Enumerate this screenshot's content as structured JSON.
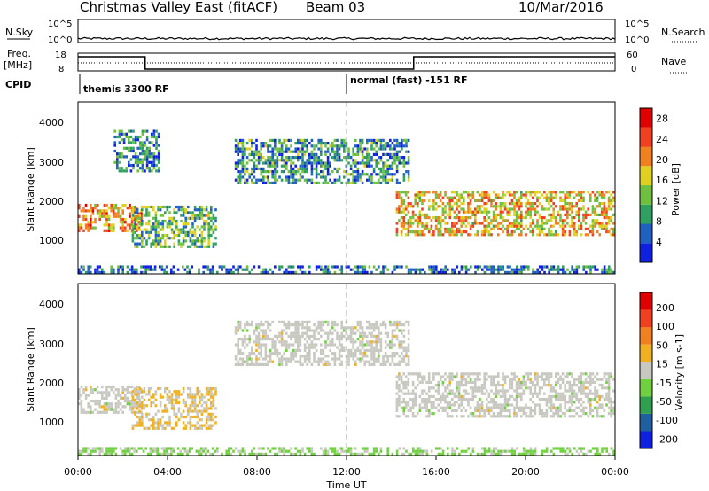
{
  "header": {
    "title": "Christmas Valley East (fitACF)",
    "beam": "Beam 03",
    "date": "10/Mar/2016"
  },
  "top_strip": {
    "nsky_label": "N.Sky",
    "nsky_ticks": [
      "10^5",
      "10^0"
    ],
    "nsearch_label": "N.Search",
    "nsearch_ticks": [
      "10^5",
      "10^0"
    ],
    "freq_label_1": "Freq.",
    "freq_label_2": "[MHz]",
    "freq_ticks": [
      "18",
      "8"
    ],
    "nave_label": "Nave",
    "nave_ticks": [
      "60",
      "0"
    ],
    "cpid_label": "CPID",
    "cpid_segments": [
      {
        "start": 0,
        "end": 12,
        "label": "themis 3300 RF"
      },
      {
        "start": 12,
        "end": 24,
        "label": "normal (fast) -151 RF"
      }
    ],
    "freq_series": [
      {
        "start": 0,
        "end": 3.0,
        "mhz": 16
      },
      {
        "start": 3.0,
        "end": 15.0,
        "mhz": 9
      },
      {
        "start": 15.0,
        "end": 24,
        "mhz": 16
      }
    ]
  },
  "x_axis": {
    "label": "Time UT",
    "ticks": [
      "00:00",
      "04:00",
      "08:00",
      "12:00",
      "16:00",
      "20:00",
      "00:00"
    ],
    "range": [
      0,
      24
    ]
  },
  "chart_data": [
    {
      "type": "heatmap",
      "title": "",
      "xlabel": "Time UT",
      "ylabel": "Slant Range [km]",
      "xlim": [
        0,
        24
      ],
      "ylim": [
        180,
        4500
      ],
      "y_ticks": [
        "1000",
        "2000",
        "3000",
        "4000"
      ],
      "colorbar": {
        "label": "Power [dB]",
        "ticks": [
          "4",
          "8",
          "12",
          "16",
          "20",
          "24",
          "28"
        ],
        "range": [
          0,
          30
        ]
      },
      "regions": [
        {
          "t0": 0.0,
          "t1": 2.8,
          "r0": 1300,
          "r1": 2000,
          "value": 20
        },
        {
          "t0": 2.4,
          "t1": 6.2,
          "r0": 900,
          "r1": 1900,
          "value": 12
        },
        {
          "t0": 1.6,
          "t1": 3.6,
          "r0": 2800,
          "r1": 3800,
          "value": 8
        },
        {
          "t0": 7.0,
          "t1": 14.8,
          "r0": 2500,
          "r1": 3600,
          "value": 9
        },
        {
          "t0": 14.2,
          "t1": 24.0,
          "r0": 1200,
          "r1": 2300,
          "value": 18
        },
        {
          "t0": 0.0,
          "t1": 24.0,
          "r0": 180,
          "r1": 400,
          "value": 6
        }
      ]
    },
    {
      "type": "heatmap",
      "title": "",
      "xlabel": "Time UT",
      "ylabel": "Slant Range [km]",
      "xlim": [
        0,
        24
      ],
      "ylim": [
        180,
        4500
      ],
      "y_ticks": [
        "1000",
        "2000",
        "3000",
        "4000"
      ],
      "colorbar": {
        "label": "Velocity [m s-1]",
        "ticks": [
          "200",
          "100",
          "50",
          "15",
          "-15",
          "-50",
          "-100",
          "-200"
        ],
        "range": [
          -250,
          250
        ]
      },
      "regions": [
        {
          "t0": 0.0,
          "t1": 2.8,
          "r0": 1300,
          "r1": 2000,
          "value": 0
        },
        {
          "t0": 2.4,
          "t1": 6.2,
          "r0": 900,
          "r1": 1900,
          "value": 30
        },
        {
          "t0": 7.0,
          "t1": 14.8,
          "r0": 2500,
          "r1": 3600,
          "value": 0
        },
        {
          "t0": 14.2,
          "t1": 24.0,
          "r0": 1200,
          "r1": 2300,
          "value": 0
        },
        {
          "t0": 0.0,
          "t1": 24.0,
          "r0": 180,
          "r1": 400,
          "value": -40
        }
      ]
    }
  ],
  "colors": {
    "power_scale": [
      "#1020e0",
      "#2060c0",
      "#30a060",
      "#70c040",
      "#e0d020",
      "#f08020",
      "#f04020",
      "#e00000"
    ],
    "velocity_scale": [
      "#1020e0",
      "#2060a0",
      "#30a050",
      "#70d040",
      "#c8c8c0",
      "#f0b020",
      "#f08020",
      "#f04020",
      "#e00000"
    ]
  }
}
